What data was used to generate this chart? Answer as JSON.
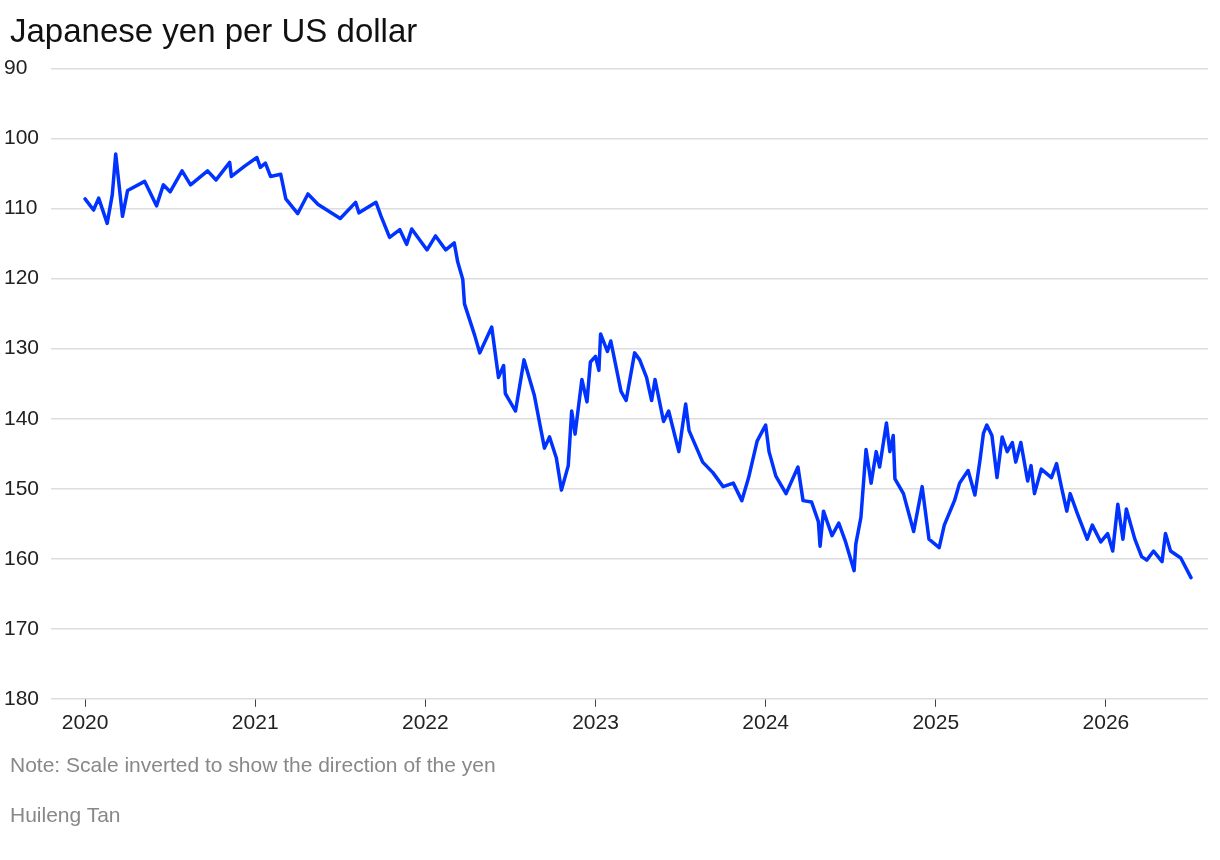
{
  "chart_data": {
    "type": "line",
    "title": "Japanese yen per US dollar",
    "x": [
      2020.0,
      2020.05,
      2020.08,
      2020.13,
      2020.16,
      2020.18,
      2020.22,
      2020.25,
      2020.35,
      2020.42,
      2020.46,
      2020.5,
      2020.57,
      2020.62,
      2020.72,
      2020.77,
      2020.85,
      2020.86,
      2020.94,
      2021.01,
      2021.03,
      2021.06,
      2021.09,
      2021.15,
      2021.18,
      2021.25,
      2021.31,
      2021.37,
      2021.5,
      2021.59,
      2021.61,
      2021.71,
      2021.74,
      2021.79,
      2021.85,
      2021.89,
      2021.92,
      2022.01,
      2022.06,
      2022.12,
      2022.17,
      2022.19,
      2022.22,
      2022.23,
      2022.29,
      2022.32,
      2022.39,
      2022.43,
      2022.46,
      2022.47,
      2022.53,
      2022.58,
      2022.64,
      2022.7,
      2022.73,
      2022.77,
      2022.8,
      2022.84,
      2022.86,
      2022.88,
      2022.92,
      2022.95,
      2022.97,
      2023.0,
      2023.02,
      2023.03,
      2023.07,
      2023.09,
      2023.15,
      2023.18,
      2023.23,
      2023.26,
      2023.3,
      2023.33,
      2023.35,
      2023.4,
      2023.43,
      2023.49,
      2023.53,
      2023.55,
      2023.63,
      2023.69,
      2023.75,
      2023.81,
      2023.86,
      2023.9,
      2023.95,
      2024.0,
      2024.02,
      2024.06,
      2024.12,
      2024.19,
      2024.22,
      2024.27,
      2024.31,
      2024.32,
      2024.34,
      2024.39,
      2024.43,
      2024.47,
      2024.52,
      2024.53,
      2024.56,
      2024.59,
      2024.62,
      2024.65,
      2024.67,
      2024.71,
      2024.73,
      2024.75,
      2024.76,
      2024.81,
      2024.87,
      2024.92,
      2024.96,
      2025.02,
      2025.05,
      2025.11,
      2025.14,
      2025.19,
      2025.23,
      2025.26,
      2025.28,
      2025.3,
      2025.33,
      2025.36,
      2025.39,
      2025.42,
      2025.45,
      2025.47,
      2025.5,
      2025.54,
      2025.56,
      2025.58,
      2025.62,
      2025.68,
      2025.71,
      2025.74,
      2025.77,
      2025.79,
      2025.83,
      2025.89,
      2025.92,
      2025.97,
      2026.01,
      2026.04,
      2026.07,
      2026.1,
      2026.12,
      2026.17,
      2026.21,
      2026.24,
      2026.28,
      2026.33,
      2026.35,
      2026.38,
      2026.44,
      2026.5
    ],
    "series": [
      {
        "color": "#0033ff",
        "values": [
          108.6,
          110.2,
          108.5,
          112.1,
          108.0,
          102.2,
          111.1,
          107.4,
          106.1,
          109.6,
          106.6,
          107.6,
          104.6,
          106.6,
          104.6,
          105.9,
          103.4,
          105.4,
          103.9,
          102.7,
          104.1,
          103.5,
          105.4,
          105.1,
          108.6,
          110.7,
          107.9,
          109.4,
          111.4,
          109.1,
          110.6,
          109.1,
          111.1,
          114.1,
          113.0,
          115.1,
          112.9,
          115.9,
          113.9,
          115.9,
          114.9,
          117.6,
          120.1,
          123.6,
          128.1,
          130.6,
          126.9,
          134.1,
          132.4,
          136.4,
          138.9,
          131.6,
          136.6,
          144.2,
          142.6,
          145.6,
          150.2,
          146.7,
          138.9,
          142.2,
          134.4,
          137.6,
          131.9,
          131.1,
          133.1,
          127.9,
          130.4,
          128.9,
          136.1,
          137.4,
          130.6,
          131.6,
          134.1,
          137.4,
          134.4,
          140.4,
          138.9,
          144.7,
          137.9,
          141.7,
          146.2,
          147.7,
          149.7,
          149.2,
          151.7,
          148.4,
          143.2,
          140.9,
          144.7,
          148.2,
          150.7,
          146.9,
          151.7,
          151.9,
          154.7,
          158.2,
          153.2,
          156.7,
          154.9,
          157.6,
          161.7,
          157.9,
          154.1,
          144.4,
          149.2,
          144.7,
          146.9,
          140.6,
          144.7,
          142.4,
          148.6,
          150.7,
          156.1,
          149.7,
          157.2,
          158.4,
          155.2,
          151.7,
          149.2,
          147.4,
          150.9,
          145.9,
          142.1,
          140.9,
          142.4,
          148.4,
          142.6,
          144.7,
          143.4,
          146.2,
          143.4,
          148.9,
          146.7,
          150.7,
          147.2,
          148.4,
          146.4,
          149.9,
          153.2,
          150.7,
          153.4,
          157.2,
          155.2,
          157.6,
          156.4,
          158.9,
          152.2,
          157.2,
          152.9,
          157.2,
          159.7,
          160.2,
          158.9,
          160.4,
          156.4,
          158.9,
          159.9,
          162.7
        ]
      }
    ],
    "xlim": [
      2019.8,
      2026.6
    ],
    "xticks": [
      2020,
      2021,
      2022,
      2023,
      2024,
      2025,
      2026
    ],
    "ylim": [
      180,
      90
    ],
    "yticks": [
      90,
      100,
      110,
      120,
      130,
      140,
      150,
      160,
      170,
      180
    ],
    "grid": "y",
    "legend": false,
    "marker": "none",
    "line_style": "solid",
    "annotations": [
      "Note: Scale inverted to show the direction of the yen",
      "Huileng Tan"
    ]
  }
}
